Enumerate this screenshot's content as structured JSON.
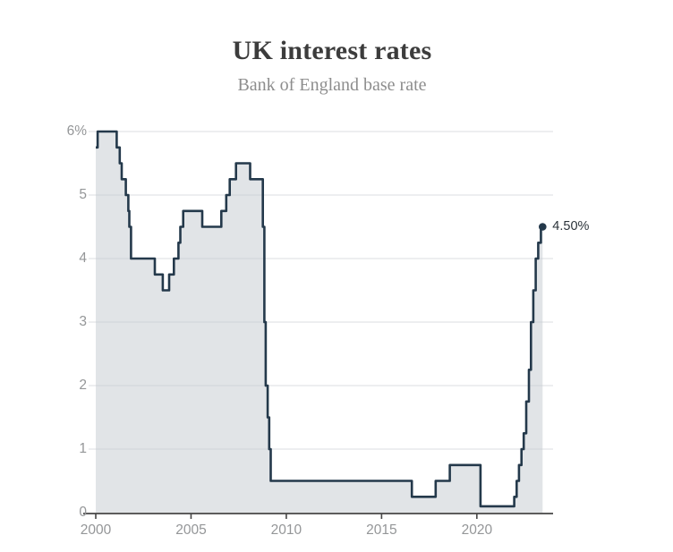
{
  "header": {
    "title": "UK interest rates",
    "subtitle": "Bank of England base rate"
  },
  "chart_data": {
    "type": "area",
    "title": "UK interest rates",
    "subtitle": "Bank of England base rate",
    "step_style": "step-after",
    "series": [
      {
        "name": "Bank of England base rate (%)",
        "step_points": [
          [
            2000.0,
            5.75
          ],
          [
            2000.1,
            6.0
          ],
          [
            2001.1,
            5.75
          ],
          [
            2001.26,
            5.5
          ],
          [
            2001.36,
            5.25
          ],
          [
            2001.58,
            5.0
          ],
          [
            2001.71,
            4.75
          ],
          [
            2001.76,
            4.5
          ],
          [
            2001.85,
            4.0
          ],
          [
            2003.1,
            3.75
          ],
          [
            2003.52,
            3.5
          ],
          [
            2003.85,
            3.75
          ],
          [
            2004.1,
            4.0
          ],
          [
            2004.34,
            4.25
          ],
          [
            2004.44,
            4.5
          ],
          [
            2004.59,
            4.75
          ],
          [
            2005.59,
            4.5
          ],
          [
            2006.59,
            4.75
          ],
          [
            2006.85,
            5.0
          ],
          [
            2007.03,
            5.25
          ],
          [
            2007.36,
            5.5
          ],
          [
            2008.1,
            5.25
          ],
          [
            2008.77,
            4.5
          ],
          [
            2008.85,
            3.0
          ],
          [
            2008.92,
            2.0
          ],
          [
            2009.02,
            1.5
          ],
          [
            2009.1,
            1.0
          ],
          [
            2009.18,
            0.5
          ],
          [
            2016.59,
            0.25
          ],
          [
            2017.84,
            0.5
          ],
          [
            2018.58,
            0.75
          ],
          [
            2020.19,
            0.1
          ],
          [
            2021.96,
            0.25
          ],
          [
            2022.09,
            0.5
          ],
          [
            2022.21,
            0.75
          ],
          [
            2022.34,
            1.0
          ],
          [
            2022.46,
            1.25
          ],
          [
            2022.59,
            1.75
          ],
          [
            2022.73,
            2.25
          ],
          [
            2022.84,
            3.0
          ],
          [
            2022.96,
            3.5
          ],
          [
            2023.09,
            4.0
          ],
          [
            2023.22,
            4.25
          ],
          [
            2023.36,
            4.5
          ]
        ],
        "end_year": 2023.45,
        "latest_value": 4.5
      }
    ],
    "annotation": {
      "label": "4.50%",
      "value": 4.5
    },
    "x_ticks": [
      {
        "value": 2000,
        "label": "2000"
      },
      {
        "value": 2005,
        "label": "2005"
      },
      {
        "value": 2010,
        "label": "2010"
      },
      {
        "value": 2015,
        "label": "2015"
      },
      {
        "value": 2020,
        "label": "2020"
      }
    ],
    "y_ticks": [
      {
        "value": 0,
        "label": "0"
      },
      {
        "value": 1,
        "label": "1"
      },
      {
        "value": 2,
        "label": "2"
      },
      {
        "value": 3,
        "label": "3"
      },
      {
        "value": 4,
        "label": "4"
      },
      {
        "value": 5,
        "label": "5"
      },
      {
        "value": 6,
        "label": "6%"
      }
    ],
    "x_range": [
      2000,
      2024
    ],
    "y_range": [
      0,
      6
    ],
    "grid": "horizontal",
    "legend": "none",
    "colors": {
      "line": "#24394b",
      "fill": "#dfe3e6",
      "dot": "#24394b",
      "gridline": "#c9ced2",
      "axis": "#454545",
      "tick_text": "#949698",
      "title_text": "#3c3c3c",
      "subtitle_text": "#8d8d8d",
      "annotation_text": "#2b333a"
    }
  }
}
